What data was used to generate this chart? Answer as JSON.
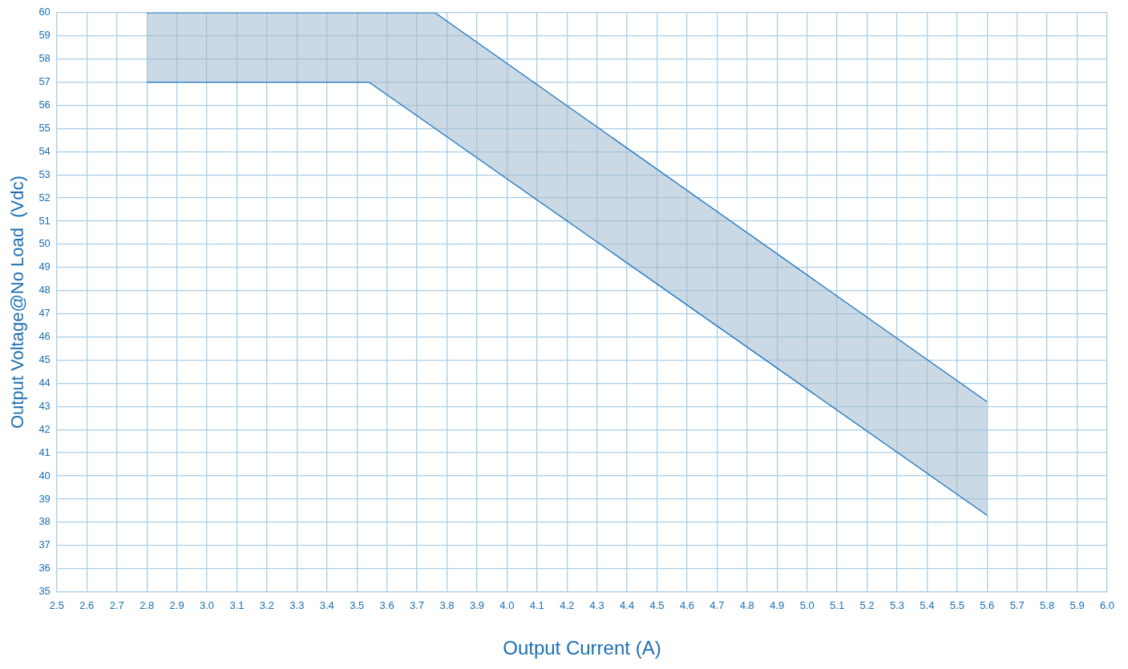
{
  "chart_data": {
    "type": "area",
    "xlabel": "Output Current (A)",
    "ylabel": "Output Voltage@No Load  (Vdc)",
    "series": [
      {
        "type": "line",
        "color": "#1a73bf",
        "x": [
          2.8,
          3.54,
          5.6
        ],
        "values": [
          57,
          57,
          38.3
        ]
      },
      {
        "color": "#1a73bf",
        "x": [
          2.8,
          3.54,
          3.76,
          5.6
        ],
        "values": [
          60,
          60,
          60,
          43.2
        ]
      }
    ],
    "xlim": [
      2.5,
      6.0
    ],
    "xticks": [
      {
        "value": 2.5,
        "label": "2.5"
      },
      {
        "value": 2.6,
        "label": "2.6"
      },
      {
        "value": 2.7,
        "label": "2.7"
      },
      {
        "value": 2.8,
        "label": "2.8"
      },
      {
        "value": 2.9,
        "label": "2.9"
      },
      {
        "value": 3.0,
        "label": "3.0"
      },
      {
        "value": 3.1,
        "label": "3.1"
      },
      {
        "value": 3.2,
        "label": "3.2"
      },
      {
        "value": 3.3,
        "label": "3.3"
      },
      {
        "value": 3.4,
        "label": "3.4"
      },
      {
        "value": 3.5,
        "label": "3.5"
      },
      {
        "value": 3.6,
        "label": "3.6"
      },
      {
        "value": 3.7,
        "label": "3.7"
      },
      {
        "value": 3.8,
        "label": "3.8"
      },
      {
        "value": 3.9,
        "label": "3.9"
      },
      {
        "value": 4.0,
        "label": "4.0"
      },
      {
        "value": 4.1,
        "label": "4.1"
      },
      {
        "value": 4.2,
        "label": "4.2"
      },
      {
        "value": 4.3,
        "label": "4.3"
      },
      {
        "value": 4.4,
        "label": "4.4"
      },
      {
        "value": 4.5,
        "label": "4.5"
      },
      {
        "value": 4.6,
        "label": "4.6"
      },
      {
        "value": 4.7,
        "label": "4.7"
      },
      {
        "value": 4.8,
        "label": "4.8"
      },
      {
        "value": 4.9,
        "label": "4.9"
      },
      {
        "value": 5.0,
        "label": "5.0"
      },
      {
        "value": 5.1,
        "label": "5.1"
      },
      {
        "value": 5.2,
        "label": "5.2"
      },
      {
        "value": 5.3,
        "label": "5.3"
      },
      {
        "value": 5.4,
        "label": "5.4"
      },
      {
        "value": 5.5,
        "label": "5.5"
      },
      {
        "value": 5.6,
        "label": "5.6"
      },
      {
        "value": 5.7,
        "label": "5.7"
      },
      {
        "value": 5.8,
        "label": "5.8"
      },
      {
        "value": 5.9,
        "label": "5.9"
      },
      {
        "value": 6.0,
        "label": "6.0"
      }
    ],
    "ylim": [
      35,
      60
    ],
    "yticks": [
      35,
      36,
      37,
      38,
      39,
      40,
      41,
      42,
      43,
      44,
      45,
      46,
      47,
      48,
      49,
      50,
      51,
      52,
      53,
      54,
      55,
      56,
      57,
      58,
      59,
      60
    ],
    "grid": true,
    "legend": false,
    "marker": "none",
    "line_style": "solid"
  }
}
